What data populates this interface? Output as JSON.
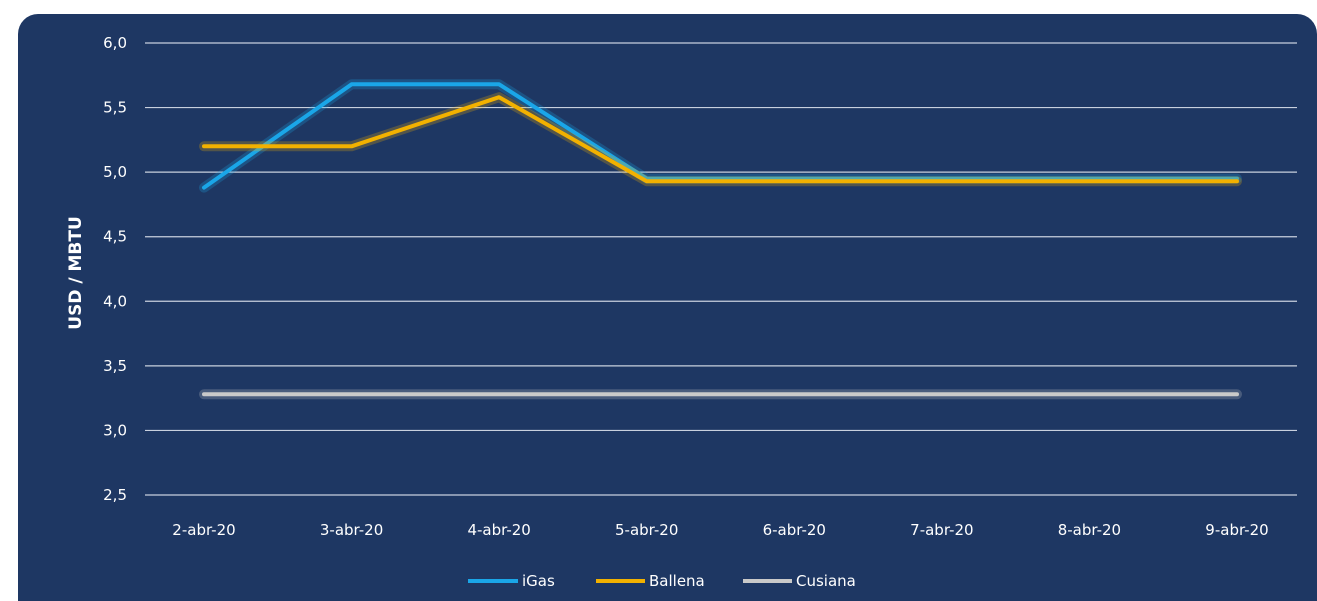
{
  "chart_data": {
    "type": "line",
    "ylabel": "USD / MBTU",
    "xlabel": "",
    "ylim": [
      2.5,
      6.0
    ],
    "yticks": [
      "6,0",
      "5,5",
      "5,0",
      "4,5",
      "4,0",
      "3,5",
      "3,0",
      "2,5"
    ],
    "ytick_values": [
      6.0,
      5.5,
      5.0,
      4.5,
      4.0,
      3.5,
      3.0,
      2.5
    ],
    "categories": [
      "2-abr-20",
      "3-abr-20",
      "4-abr-20",
      "5-abr-20",
      "6-abr-20",
      "7-abr-20",
      "8-abr-20",
      "9-abr-20"
    ],
    "grid": true,
    "legend_position": "bottom",
    "series": [
      {
        "name": "iGas",
        "color": "#1aa6e8",
        "values": [
          4.88,
          5.68,
          5.68,
          4.95,
          4.95,
          4.95,
          4.95,
          4.95
        ]
      },
      {
        "name": "Ballena",
        "color": "#f2b100",
        "values": [
          5.2,
          5.2,
          5.58,
          4.93,
          4.93,
          4.93,
          4.93,
          4.93
        ]
      },
      {
        "name": "Cusiana",
        "color": "#c9c9c9",
        "values": [
          3.28,
          3.28,
          3.28,
          3.28,
          3.28,
          3.28,
          3.28,
          3.28
        ]
      }
    ]
  }
}
